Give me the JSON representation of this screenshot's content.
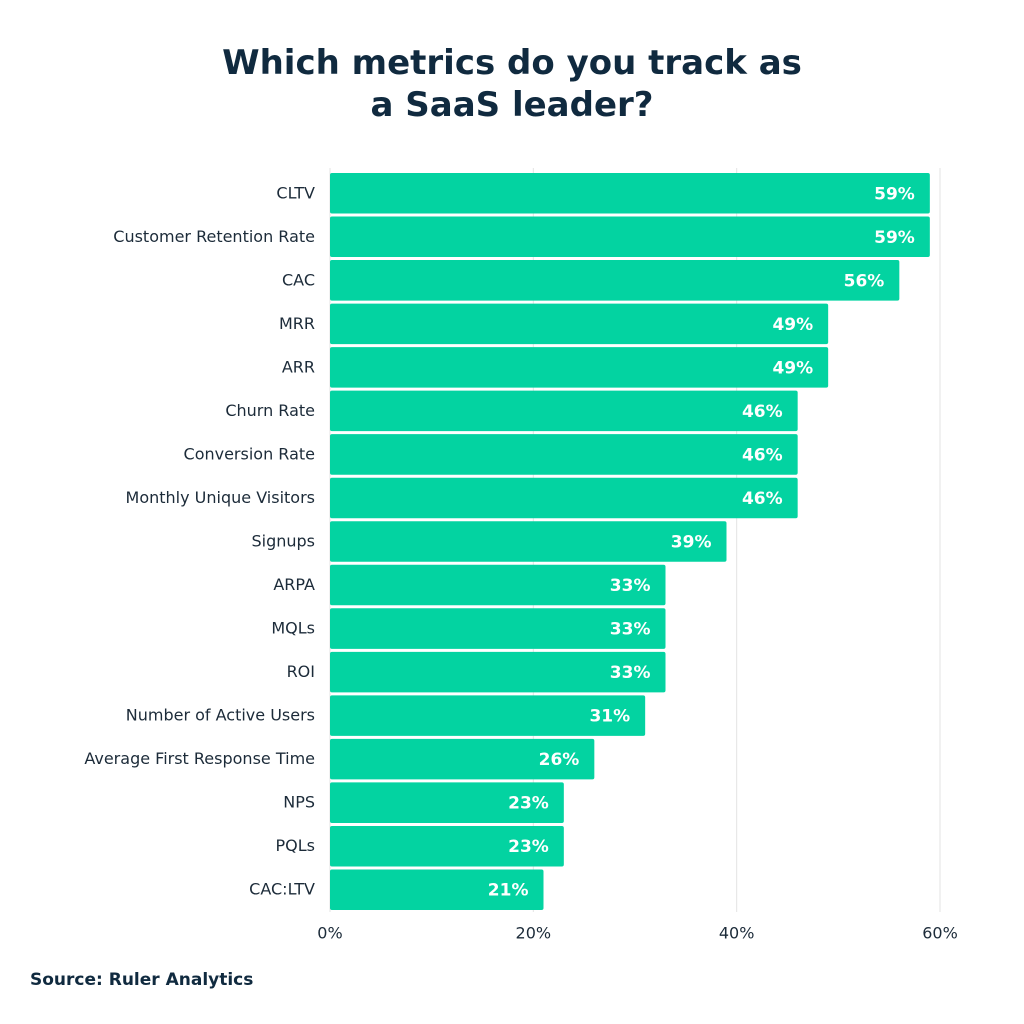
{
  "chart_data": {
    "type": "bar",
    "orientation": "horizontal",
    "title": "Which metrics do you track as a SaaS leader?",
    "source": "Source: Ruler Analytics",
    "categories": [
      "CLTV",
      "Customer Retention Rate",
      "CAC",
      "MRR",
      "ARR",
      "Churn Rate",
      "Conversion Rate",
      "Monthly Unique Visitors",
      "Signups",
      "ARPA",
      "MQLs",
      "ROI",
      "Number of Active Users",
      "Average First Response Time",
      "NPS",
      "PQLs",
      "CAC:LTV"
    ],
    "values": [
      59,
      59,
      56,
      49,
      49,
      46,
      46,
      46,
      39,
      33,
      33,
      33,
      31,
      26,
      23,
      23,
      21
    ],
    "value_labels": [
      "59%",
      "59%",
      "56%",
      "49%",
      "49%",
      "46%",
      "46%",
      "46%",
      "39%",
      "33%",
      "33%",
      "33%",
      "31%",
      "26%",
      "23%",
      "23%",
      "21%"
    ],
    "color": "#03d3a1",
    "xlim": [
      0,
      60
    ],
    "xticks": [
      {
        "value": 0,
        "label": "0%"
      },
      {
        "value": 20,
        "label": "20%"
      },
      {
        "value": 40,
        "label": "40%"
      },
      {
        "value": 60,
        "label": "60%"
      }
    ],
    "grid": true
  }
}
